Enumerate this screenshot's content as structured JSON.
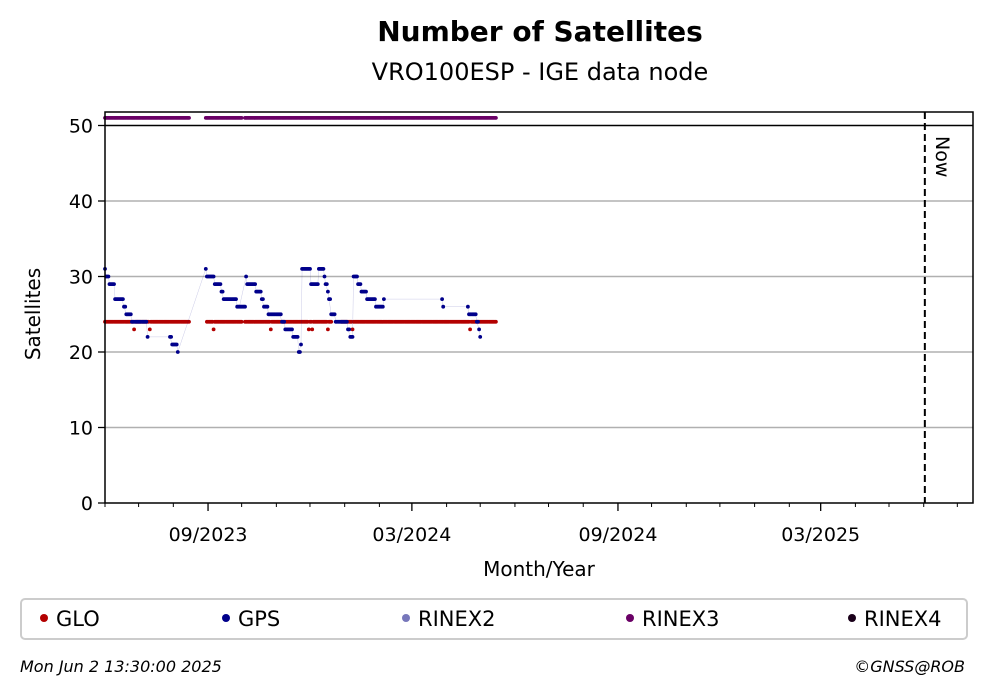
{
  "chart_data": {
    "type": "scatter",
    "title": "Number of Satellites",
    "subtitle": "VRO100ESP - IGE data node",
    "xlabel": "Month/Year",
    "ylabel": "Satellites",
    "ylim": [
      0,
      52
    ],
    "yticks": [
      0,
      10,
      20,
      30,
      40,
      50
    ],
    "xlim": [
      "2023-06-01",
      "2025-07-15"
    ],
    "xticks": [
      {
        "date": "2023-09-01",
        "label": "09/2023"
      },
      {
        "date": "2024-03-01",
        "label": "03/2024"
      },
      {
        "date": "2024-09-01",
        "label": "09/2024"
      },
      {
        "date": "2025-03-01",
        "label": "03/2025"
      }
    ],
    "minor_ticks": [
      "2023-06-01",
      "2023-07-01",
      "2023-08-01",
      "2023-10-01",
      "2023-11-01",
      "2023-12-01",
      "2024-01-01",
      "2024-02-01",
      "2024-04-01",
      "2024-05-01",
      "2024-06-01",
      "2024-07-01",
      "2024-08-01",
      "2024-10-01",
      "2024-11-01",
      "2024-12-01",
      "2025-01-01",
      "2025-02-01",
      "2025-04-01",
      "2025-05-01",
      "2025-06-01",
      "2025-07-01"
    ],
    "grid": "horizontal",
    "now": {
      "date": "2025-06-02",
      "label": "Now"
    },
    "legend_position": "bottom",
    "series": [
      {
        "name": "GLO",
        "color": "#b30000",
        "marker": "dot",
        "segments": [
          {
            "start": "2023-06-01",
            "end": "2023-08-15",
            "value": 24,
            "dips": [
              [
                "2023-06-27",
                23
              ],
              [
                "2023-07-11",
                23
              ]
            ]
          },
          {
            "start": "2023-08-31",
            "end": "2023-10-01",
            "value": 24,
            "dips": [
              [
                "2023-09-06",
                23
              ]
            ]
          },
          {
            "start": "2023-10-04",
            "end": "2023-12-20",
            "value": 24,
            "dips": [
              [
                "2023-10-27",
                23
              ],
              [
                "2023-11-30",
                23
              ],
              [
                "2023-12-03",
                23
              ],
              [
                "2023-12-17",
                23
              ]
            ]
          },
          {
            "start": "2023-12-29",
            "end": "2024-05-15",
            "value": 24,
            "dips": [
              [
                "2024-01-08",
                23
              ],
              [
                "2024-04-22",
                23
              ]
            ]
          }
        ]
      },
      {
        "name": "GPS",
        "color": "#00008b",
        "marker": "dot",
        "points": [
          [
            "2023-06-01",
            31
          ],
          [
            "2023-06-02",
            30
          ],
          [
            "2023-06-04",
            30
          ],
          [
            "2023-06-05",
            29
          ],
          [
            "2023-06-09",
            29
          ],
          [
            "2023-06-10",
            27
          ],
          [
            "2023-06-16",
            27
          ],
          [
            "2023-06-18",
            26
          ],
          [
            "2023-06-20",
            25
          ],
          [
            "2023-06-24",
            25
          ],
          [
            "2023-06-25",
            24
          ],
          [
            "2023-07-08",
            24
          ],
          [
            "2023-07-09",
            22
          ],
          [
            "2023-07-29",
            22
          ],
          [
            "2023-07-31",
            21
          ],
          [
            "2023-08-04",
            21
          ],
          [
            "2023-08-05",
            20
          ],
          [
            "2023-08-30",
            31
          ],
          [
            "2023-08-31",
            30
          ],
          [
            "2023-09-06",
            30
          ],
          [
            "2023-09-07",
            29
          ],
          [
            "2023-09-12",
            29
          ],
          [
            "2023-09-13",
            28
          ],
          [
            "2023-09-15",
            27
          ],
          [
            "2023-09-26",
            27
          ],
          [
            "2023-09-27",
            26
          ],
          [
            "2023-09-29",
            26
          ],
          [
            "2023-10-05",
            30
          ],
          [
            "2023-10-06",
            29
          ],
          [
            "2023-10-13",
            29
          ],
          [
            "2023-10-14",
            28
          ],
          [
            "2023-10-18",
            28
          ],
          [
            "2023-10-19",
            27
          ],
          [
            "2023-10-21",
            26
          ],
          [
            "2023-10-24",
            26
          ],
          [
            "2023-10-25",
            25
          ],
          [
            "2023-11-04",
            25
          ],
          [
            "2023-11-06",
            24
          ],
          [
            "2023-11-08",
            24
          ],
          [
            "2023-11-09",
            23
          ],
          [
            "2023-11-15",
            23
          ],
          [
            "2023-11-16",
            22
          ],
          [
            "2023-11-20",
            22
          ],
          [
            "2023-11-21",
            20
          ],
          [
            "2023-11-23",
            21
          ],
          [
            "2023-11-24",
            31
          ],
          [
            "2023-12-01",
            31
          ],
          [
            "2023-12-02",
            29
          ],
          [
            "2023-12-08",
            29
          ],
          [
            "2023-12-09",
            31
          ],
          [
            "2023-12-13",
            31
          ],
          [
            "2023-12-14",
            30
          ],
          [
            "2023-12-15",
            29
          ],
          [
            "2023-12-17",
            28
          ],
          [
            "2023-12-18",
            27
          ],
          [
            "2023-12-20",
            25
          ],
          [
            "2023-12-23",
            25
          ],
          [
            "2023-12-24",
            24
          ],
          [
            "2024-01-03",
            24
          ],
          [
            "2024-01-04",
            23
          ],
          [
            "2024-01-06",
            22
          ],
          [
            "2024-01-08",
            22
          ],
          [
            "2024-01-09",
            30
          ],
          [
            "2024-01-12",
            30
          ],
          [
            "2024-01-13",
            29
          ],
          [
            "2024-01-15",
            29
          ],
          [
            "2024-01-16",
            28
          ],
          [
            "2024-01-20",
            28
          ],
          [
            "2024-01-21",
            27
          ],
          [
            "2024-01-28",
            27
          ],
          [
            "2024-01-29",
            26
          ],
          [
            "2024-02-04",
            26
          ],
          [
            "2024-02-05",
            27
          ],
          [
            "2024-03-28",
            27
          ],
          [
            "2024-03-29",
            26
          ],
          [
            "2024-04-20",
            26
          ],
          [
            "2024-04-21",
            25
          ],
          [
            "2024-04-27",
            25
          ],
          [
            "2024-04-28",
            24
          ],
          [
            "2024-04-30",
            23
          ],
          [
            "2024-05-01",
            22
          ]
        ]
      },
      {
        "name": "RINEX2",
        "color": "#7777bb",
        "marker": "dot",
        "points": []
      },
      {
        "name": "RINEX3",
        "color": "#6a0066",
        "marker": "dot",
        "segments": [
          {
            "start": "2023-06-01",
            "end": "2023-08-15",
            "value": 51
          },
          {
            "start": "2023-08-30",
            "end": "2023-10-01",
            "value": 51
          },
          {
            "start": "2023-10-04",
            "end": "2024-05-15",
            "value": 51
          }
        ]
      },
      {
        "name": "RINEX4",
        "color": "#1a001a",
        "marker": "dot",
        "points": []
      }
    ]
  },
  "footer": {
    "timestamp": "Mon Jun  2 13:30:00 2025",
    "credit": "©GNSS@ROB"
  }
}
